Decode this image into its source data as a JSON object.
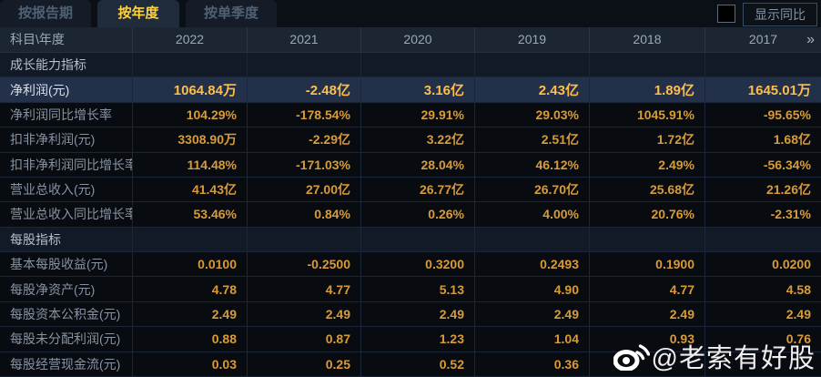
{
  "tabs": [
    {
      "label": "按报告期",
      "active": false
    },
    {
      "label": "按年度",
      "active": true
    },
    {
      "label": "按单季度",
      "active": false
    }
  ],
  "controls": {
    "show_yoy_label": "显示同比",
    "checkbox_checked": false
  },
  "table": {
    "corner_label": "科目\\年度",
    "year_columns": [
      "2022",
      "2021",
      "2020",
      "2019",
      "2018",
      "2017"
    ],
    "more_years_glyph": "»",
    "rows": [
      {
        "type": "section",
        "label": "成长能力指标",
        "values": [
          "",
          "",
          "",
          "",
          "",
          ""
        ]
      },
      {
        "type": "highlight",
        "label": "净利润(元)",
        "values": [
          "1064.84万",
          "-2.48亿",
          "3.16亿",
          "2.43亿",
          "1.89亿",
          "1645.01万"
        ]
      },
      {
        "type": "data",
        "label": "净利润同比增长率",
        "values": [
          "104.29%",
          "-178.54%",
          "29.91%",
          "29.03%",
          "1045.91%",
          "-95.65%"
        ]
      },
      {
        "type": "data",
        "label": "扣非净利润(元)",
        "values": [
          "3308.90万",
          "-2.29亿",
          "3.22亿",
          "2.51亿",
          "1.72亿",
          "1.68亿"
        ]
      },
      {
        "type": "data",
        "label": "扣非净利润同比增长率",
        "values": [
          "114.48%",
          "-171.03%",
          "28.04%",
          "46.12%",
          "2.49%",
          "-56.34%"
        ]
      },
      {
        "type": "data",
        "label": "营业总收入(元)",
        "values": [
          "41.43亿",
          "27.00亿",
          "26.77亿",
          "26.70亿",
          "25.68亿",
          "21.26亿"
        ]
      },
      {
        "type": "data",
        "label": "营业总收入同比增长率",
        "values": [
          "53.46%",
          "0.84%",
          "0.26%",
          "4.00%",
          "20.76%",
          "-2.31%"
        ]
      },
      {
        "type": "section",
        "label": "每股指标",
        "values": [
          "",
          "",
          "",
          "",
          "",
          ""
        ]
      },
      {
        "type": "data",
        "label": "基本每股收益(元)",
        "values": [
          "0.0100",
          "-0.2500",
          "0.3200",
          "0.2493",
          "0.1900",
          "0.0200"
        ]
      },
      {
        "type": "data",
        "label": "每股净资产(元)",
        "values": [
          "4.78",
          "4.77",
          "5.13",
          "4.90",
          "4.77",
          "4.58"
        ]
      },
      {
        "type": "data",
        "label": "每股资本公积金(元)",
        "values": [
          "2.49",
          "2.49",
          "2.49",
          "2.49",
          "2.49",
          "2.49"
        ]
      },
      {
        "type": "data",
        "label": "每股未分配利润(元)",
        "values": [
          "0.88",
          "0.87",
          "1.23",
          "1.04",
          "0.93",
          "0.76"
        ]
      },
      {
        "type": "data",
        "label": "每股经营现金流(元)",
        "values": [
          "0.03",
          "0.25",
          "0.52",
          "0.36",
          "",
          ""
        ]
      }
    ]
  },
  "watermark": {
    "icon": "weibo-icon",
    "text": "@老索有好股"
  },
  "colors": {
    "active_tab_text": "#ffd23e",
    "value_gold": "#d99b38",
    "highlight_value_gold": "#ffbe4a",
    "highlight_row_bg": "#22304a",
    "header_bg": "#1c2633",
    "section_bg": "#121a27",
    "row_bg": "#080b10"
  }
}
